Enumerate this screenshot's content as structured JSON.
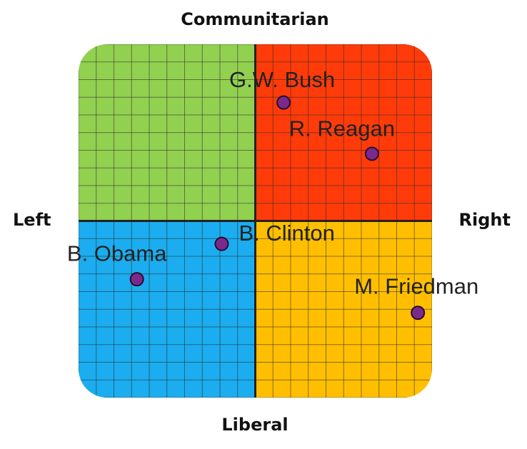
{
  "chart_data": {
    "type": "scatter",
    "top_label": "Communitarian",
    "bottom_label": "Liberal",
    "left_label": "Left",
    "right_label": "Right",
    "labels": [
      "G.W. Bush",
      "R. Reagan",
      "B. Clinton",
      "B. Obama",
      "M. Friedman"
    ],
    "x": [
      1.6,
      6.6,
      -1.9,
      -6.7,
      9.2
    ],
    "y": [
      6.7,
      3.8,
      -1.3,
      -3.3,
      -5.2
    ],
    "xlim": [
      -10,
      10
    ],
    "ylim": [
      -10,
      10
    ],
    "grid": true,
    "point_color": "#7b2a8c",
    "quadrant_colors": {
      "top_left": "#92d050",
      "top_right": "#ff3b0a",
      "bottom_left": "#1badef",
      "bottom_right": "#ffbf00"
    }
  }
}
